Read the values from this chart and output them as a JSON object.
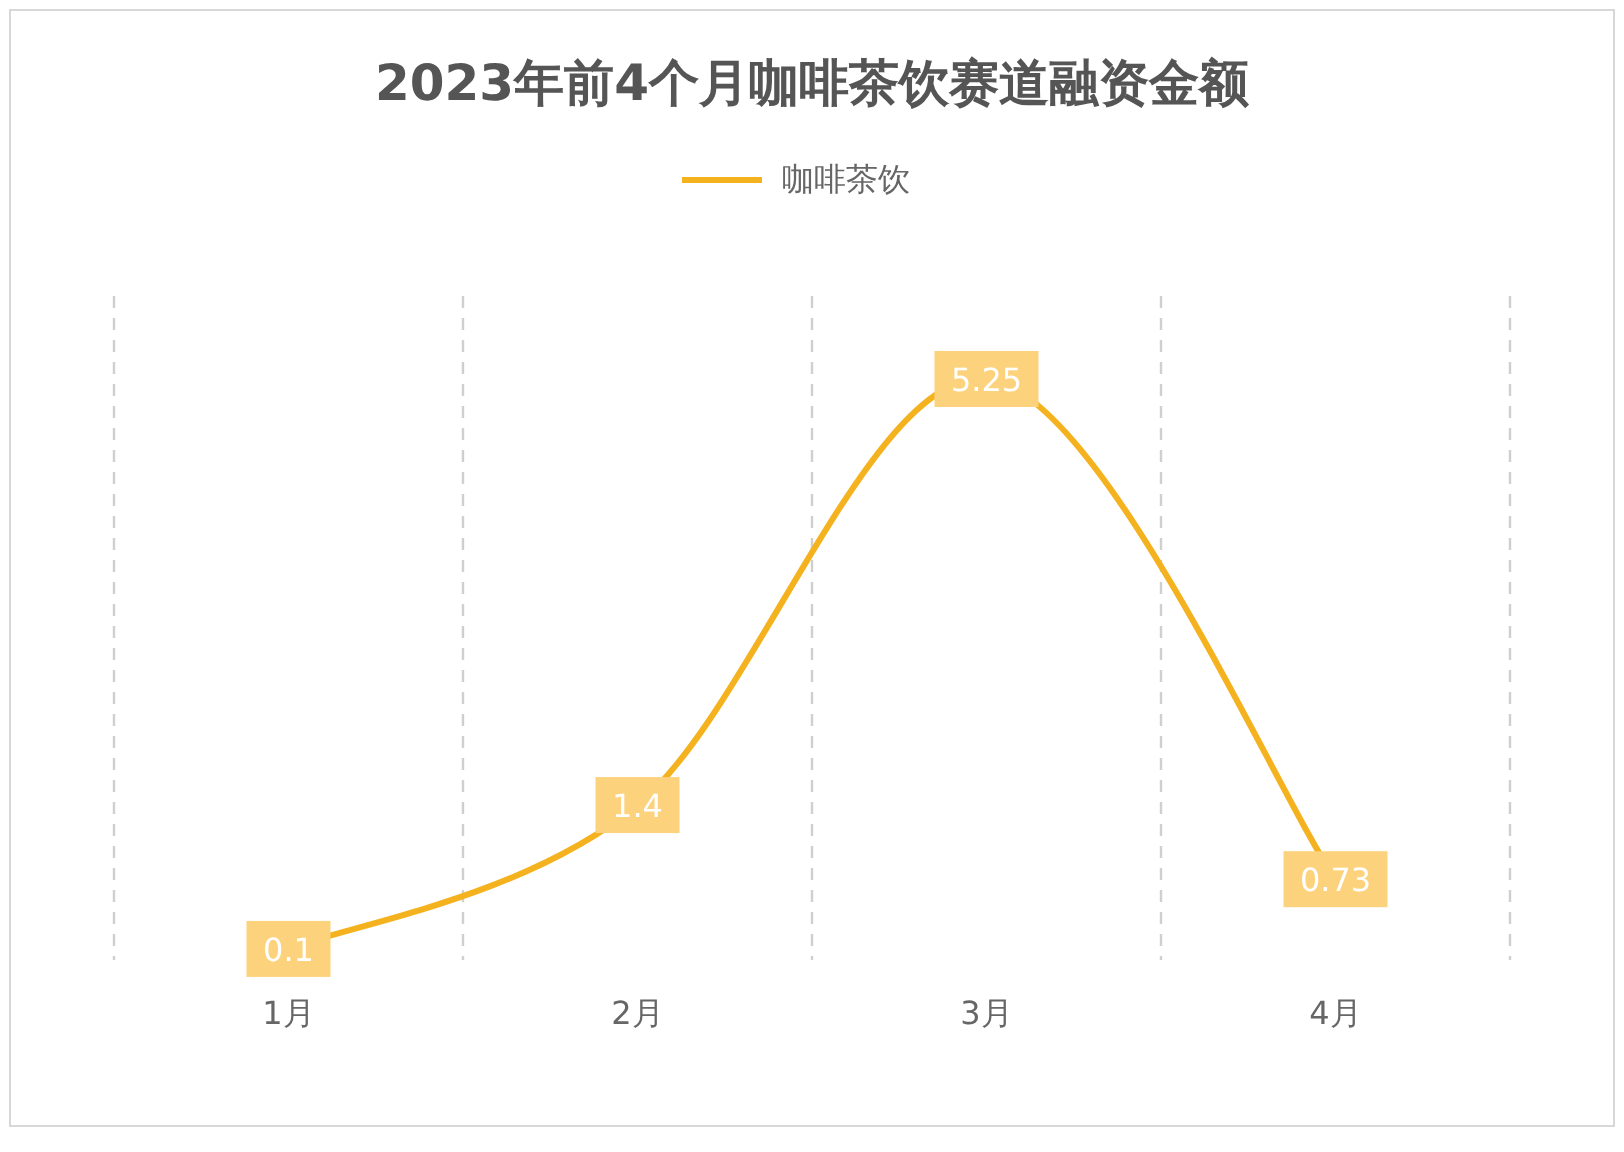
{
  "chart_data": {
    "type": "line",
    "title": "2023年前4个月咖啡茶饮赛道融资金额",
    "categories": [
      "1月",
      "2月",
      "3月",
      "4月"
    ],
    "series": [
      {
        "name": "咖啡茶饮",
        "color": "#f5b21f",
        "values": [
          0.1,
          1.4,
          5.25,
          0.73
        ]
      }
    ],
    "data_labels": true,
    "grid": "x",
    "legend": "top",
    "marker": "square",
    "line_style": "solid"
  }
}
